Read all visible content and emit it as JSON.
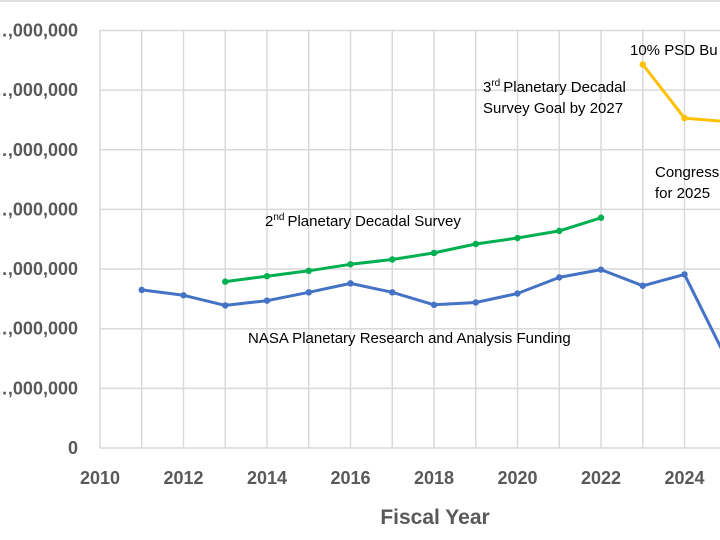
{
  "chart_data": {
    "type": "line",
    "xlabel": "Fiscal Year",
    "ylabel": "",
    "x_ticks": [
      2010,
      2012,
      2014,
      2016,
      2018,
      2020,
      2022,
      2024
    ],
    "y_ticks": [
      "0",
      "…,000,000",
      "…,000,000",
      "…,000,000",
      "…,000,000",
      "…,000,000",
      "…,000,000",
      "…,000,000"
    ],
    "xlim": [
      2010,
      2025.6
    ],
    "ylim": [
      0,
      7
    ],
    "grid": true,
    "colors": {
      "research": "#4472C4",
      "decadal_2": "#00B050",
      "decadal_3": "#FFC000",
      "grid": "#D9D9D9"
    },
    "series": [
      {
        "name": "NASA Planetary Research and Analysis Funding",
        "x": [
          2011,
          2012,
          2013,
          2014,
          2015,
          2016,
          2017,
          2018,
          2019,
          2020,
          2021,
          2022,
          2023,
          2024,
          2025
        ],
        "values": [
          2.65,
          2.56,
          2.39,
          2.47,
          2.61,
          2.76,
          2.61,
          2.4,
          2.44,
          2.59,
          2.86,
          2.99,
          2.72,
          2.91,
          1.5
        ]
      },
      {
        "name": "2nd Planetary Decadal Survey",
        "x": [
          2013,
          2014,
          2015,
          2016,
          2017,
          2018,
          2019,
          2020,
          2021,
          2022
        ],
        "values": [
          2.79,
          2.88,
          2.97,
          3.08,
          3.16,
          3.27,
          3.42,
          3.52,
          3.64,
          3.86
        ]
      },
      {
        "name": "3rd Planetary Decadal Survey Goal by 2027",
        "x": [
          2023,
          2024,
          2025
        ],
        "values": [
          6.43,
          5.53,
          5.47
        ]
      }
    ],
    "annotations": {
      "psd_budget": "10% PSD Bu",
      "decadal_3_line1": "Planetary Decadal",
      "decadal_3_line2": "Survey Goal by 2027",
      "decadal_3_num": "3",
      "decadal_3_sup": "rd",
      "decadal_2_num": "2",
      "decadal_2_sup": "nd",
      "decadal_2_rest": "Planetary Decadal Survey",
      "research_label": "NASA Planetary Research and Analysis Funding",
      "congress_line1": "Congress",
      "congress_line2": "for 2025"
    }
  }
}
